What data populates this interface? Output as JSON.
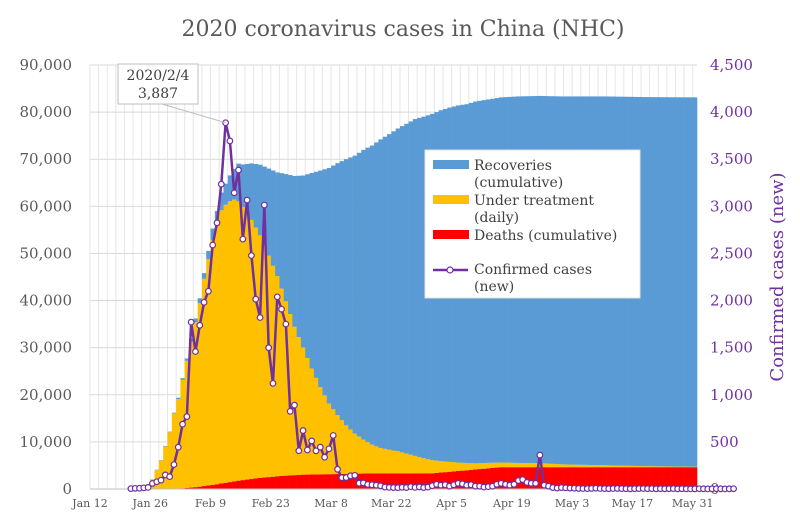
{
  "chart_data": {
    "type": "bar",
    "title": "2020 coronavirus cases in China (NHC)",
    "y_left": {
      "min": 0,
      "max": 90000,
      "step": 10000,
      "tick_labels": [
        "0",
        "10,000",
        "20,000",
        "30,000",
        "40,000",
        "50,000",
        "60,000",
        "70,000",
        "80,000",
        "90,000"
      ]
    },
    "y_right": {
      "min": 0,
      "max": 4500,
      "step": 500,
      "label": "Confirmed cases (new)",
      "tick_labels": [
        "0",
        "500",
        "1,000",
        "1,500",
        "2,000",
        "2,500",
        "3,000",
        "3,500",
        "4,000",
        "4,500"
      ]
    },
    "x_tick_labels": [
      "Jan 12",
      "Jan 26",
      "Feb 9",
      "Feb 23",
      "Mar 8",
      "Mar 22",
      "Apr 5",
      "Apr 19",
      "May 3",
      "May 17",
      "May 31"
    ],
    "legend": [
      {
        "label": "Recoveries",
        "label2": "(cumulative)",
        "color": "#5b9bd5",
        "kind": "bar"
      },
      {
        "label": "Under treatment",
        "label2": "(daily)",
        "color": "#ffc000",
        "kind": "bar"
      },
      {
        "label": "Deaths (cumulative)",
        "label2": "",
        "color": "#ff0000",
        "kind": "bar"
      },
      {
        "label": "Confirmed cases",
        "label2": "(new)",
        "color": "#7030a0",
        "kind": "line"
      }
    ],
    "callout": {
      "line1": "2020/2/4",
      "line2": "3,887"
    },
    "stack_anchors": {
      "deaths": [
        [
          1,
          0
        ],
        [
          10,
          2
        ],
        [
          15,
          6
        ],
        [
          20,
          56
        ],
        [
          23,
          213
        ],
        [
          26,
          492
        ],
        [
          30,
          1017
        ],
        [
          35,
          1770
        ],
        [
          40,
          2345
        ],
        [
          45,
          2788
        ],
        [
          50,
          3042
        ],
        [
          55,
          3122
        ],
        [
          60,
          3213
        ],
        [
          65,
          3300
        ],
        [
          70,
          3322
        ],
        [
          80,
          3333
        ],
        [
          96,
          4632
        ],
        [
          141,
          4634
        ]
      ],
      "under_treatment": [
        [
          1,
          0
        ],
        [
          5,
          30
        ],
        [
          10,
          120
        ],
        [
          13,
          500
        ],
        [
          14,
          1000
        ],
        [
          15,
          2000
        ],
        [
          16,
          4000
        ],
        [
          17,
          6000
        ],
        [
          18,
          9000
        ],
        [
          19,
          12000
        ],
        [
          20,
          16000
        ],
        [
          21,
          19000
        ],
        [
          22,
          23000
        ],
        [
          23,
          27000
        ],
        [
          24,
          31000
        ],
        [
          25,
          35000
        ],
        [
          26,
          39000
        ],
        [
          27,
          44000
        ],
        [
          28,
          48000
        ],
        [
          29,
          52000
        ],
        [
          30,
          55000
        ],
        [
          31,
          58000
        ],
        [
          32,
          59000
        ],
        [
          33,
          59600
        ],
        [
          34,
          59800
        ],
        [
          35,
          59300
        ],
        [
          36,
          58000
        ],
        [
          38,
          55000
        ],
        [
          40,
          51500
        ],
        [
          42,
          47000
        ],
        [
          44,
          42500
        ],
        [
          46,
          37000
        ],
        [
          48,
          31500
        ],
        [
          50,
          27000
        ],
        [
          52,
          22500
        ],
        [
          54,
          18500
        ],
        [
          56,
          15000
        ],
        [
          58,
          12500
        ],
        [
          60,
          10300
        ],
        [
          62,
          8500
        ],
        [
          64,
          7200
        ],
        [
          66,
          6100
        ],
        [
          68,
          5400
        ],
        [
          70,
          5000
        ],
        [
          72,
          4700
        ],
        [
          74,
          4200
        ],
        [
          76,
          3700
        ],
        [
          78,
          3200
        ],
        [
          80,
          2800
        ],
        [
          82,
          2400
        ],
        [
          84,
          2100
        ],
        [
          86,
          1800
        ],
        [
          88,
          1500
        ],
        [
          90,
          1300
        ],
        [
          95,
          1050
        ],
        [
          96,
          1000
        ],
        [
          100,
          900
        ],
        [
          105,
          850
        ],
        [
          110,
          600
        ],
        [
          120,
          400
        ],
        [
          130,
          200
        ],
        [
          141,
          100
        ]
      ],
      "recoveries": [
        [
          1,
          0
        ],
        [
          10,
          0
        ],
        [
          15,
          50
        ],
        [
          20,
          150
        ],
        [
          24,
          600
        ],
        [
          27,
          1200
        ],
        [
          30,
          3000
        ],
        [
          32,
          4500
        ],
        [
          34,
          6500
        ],
        [
          35,
          8000
        ],
        [
          36,
          9000
        ],
        [
          38,
          12000
        ],
        [
          40,
          15000
        ],
        [
          42,
          18500
        ],
        [
          44,
          22000
        ],
        [
          46,
          27000
        ],
        [
          48,
          32000
        ],
        [
          50,
          36500
        ],
        [
          52,
          41500
        ],
        [
          54,
          46000
        ],
        [
          56,
          50000
        ],
        [
          58,
          53500
        ],
        [
          60,
          56500
        ],
        [
          62,
          59000
        ],
        [
          64,
          61500
        ],
        [
          66,
          63500
        ],
        [
          68,
          65500
        ],
        [
          70,
          67000
        ],
        [
          72,
          68500
        ],
        [
          74,
          70000
        ],
        [
          76,
          71500
        ],
        [
          78,
          72500
        ],
        [
          80,
          73500
        ],
        [
          82,
          74500
        ],
        [
          84,
          75200
        ],
        [
          86,
          75800
        ],
        [
          88,
          76200
        ],
        [
          90,
          76800
        ],
        [
          96,
          77500
        ],
        [
          100,
          77800
        ],
        [
          110,
          78100
        ],
        [
          120,
          78300
        ],
        [
          141,
          78400
        ]
      ]
    },
    "confirmed_new": [
      4,
      7,
      8,
      12,
      17,
      59,
      77,
      93,
      149,
      131,
      259,
      444,
      688,
      769,
      1771,
      1459,
      1737,
      1981,
      2099,
      2589,
      2825,
      3235,
      3887,
      3694,
      3143,
      3385,
      2652,
      3067,
      2478,
      2015,
      1820,
      3013,
      1500,
      1121,
      2039,
      1908,
      1750,
      824,
      890,
      406,
      620,
      414,
      510,
      405,
      444,
      337,
      426,
      568,
      209,
      120,
      121,
      140,
      145,
      61,
      64,
      48,
      45,
      40,
      34,
      20,
      17,
      15,
      14,
      18,
      15,
      25,
      17,
      22,
      15,
      20,
      35,
      50,
      40,
      45,
      30,
      45,
      60,
      55,
      40,
      45,
      30,
      30,
      20,
      25,
      30,
      50,
      60,
      50,
      40,
      50,
      90,
      100,
      70,
      60,
      60,
      360,
      40,
      30,
      15,
      10,
      15,
      12,
      10,
      8,
      6,
      5,
      4,
      6,
      8,
      5,
      4,
      3,
      5,
      6,
      4,
      3,
      2,
      3,
      4,
      5,
      3,
      4,
      2,
      3,
      2,
      3,
      4,
      2,
      3,
      2,
      1,
      2,
      3,
      2,
      1,
      2,
      3,
      2,
      1,
      2,
      3
    ]
  }
}
